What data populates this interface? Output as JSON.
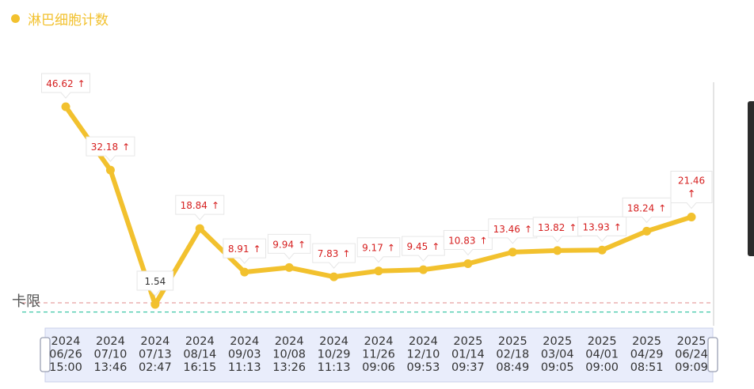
{
  "chart_data": {
    "type": "line",
    "legend": "淋巴细胞计数",
    "color": "#f2c12e",
    "limit_label": "卡限",
    "x": [
      {
        "year": "2024",
        "date": "06/26",
        "time": "15:00"
      },
      {
        "year": "2024",
        "date": "07/10",
        "time": "13:46"
      },
      {
        "year": "2024",
        "date": "07/13",
        "time": "02:47"
      },
      {
        "year": "2024",
        "date": "08/14",
        "time": "16:15"
      },
      {
        "year": "2024",
        "date": "09/03",
        "time": "11:13"
      },
      {
        "year": "2024",
        "date": "10/08",
        "time": "13:26"
      },
      {
        "year": "2024",
        "date": "10/29",
        "time": "11:13"
      },
      {
        "year": "2024",
        "date": "11/26",
        "time": "09:06"
      },
      {
        "year": "2024",
        "date": "12/10",
        "time": "09:53"
      },
      {
        "year": "2025",
        "date": "01/14",
        "time": "09:37"
      },
      {
        "year": "2025",
        "date": "02/18",
        "time": "08:49"
      },
      {
        "year": "2025",
        "date": "03/04",
        "time": "09:05"
      },
      {
        "year": "2025",
        "date": "04/01",
        "time": "09:00"
      },
      {
        "year": "2025",
        "date": "04/29",
        "time": "08:51"
      },
      {
        "year": "2025",
        "date": "06/24",
        "time": "09:09"
      }
    ],
    "values": [
      46.62,
      32.18,
      1.54,
      18.84,
      8.91,
      9.94,
      7.83,
      9.17,
      9.45,
      10.83,
      13.46,
      13.82,
      13.93,
      18.24,
      21.46
    ],
    "labels": [
      "46.62",
      "32.18",
      "1.54",
      "18.84",
      "8.91",
      "9.94",
      "7.83",
      "9.17",
      "9.45",
      "10.83",
      "13.46",
      "13.82",
      "13.93",
      "18.24",
      "21.46"
    ],
    "flags": [
      "↑",
      "↑",
      "",
      "↑",
      "↑",
      "↑",
      "↑",
      "↑",
      "↑",
      "↑",
      "↑",
      "↑",
      "↑",
      "↑",
      "↑"
    ],
    "reference_lines": [
      {
        "value": 1.9,
        "color": "#e8a0a0"
      },
      {
        "value": -0.2,
        "color": "#40c8a8"
      }
    ]
  }
}
